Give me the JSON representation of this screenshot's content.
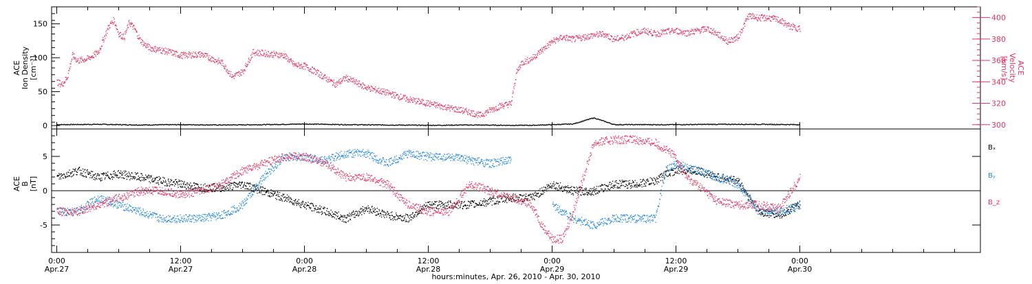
{
  "chart_data": [
    {
      "type": "line",
      "panel": "top",
      "xlabel": "hours:minutes, Apr. 26, 2010 - Apr. 30, 2010",
      "x_unit": "hours since Apr.27 00:00",
      "xlim": [
        -0.5,
        89.5
      ],
      "x_tick_labels": [
        {
          "x": 0,
          "time": "0:00",
          "date": "Apr.27"
        },
        {
          "x": 12,
          "time": "12:00",
          "date": "Apr.27"
        },
        {
          "x": 24,
          "time": "0:00",
          "date": "Apr.28"
        },
        {
          "x": 36,
          "time": "12:00",
          "date": "Apr.28"
        },
        {
          "x": 48,
          "time": "0:00",
          "date": "Apr.29"
        },
        {
          "x": 60,
          "time": "12:00",
          "date": "Apr.29"
        },
        {
          "x": 72,
          "time": "0:00",
          "date": "Apr.30"
        }
      ],
      "left_axis": {
        "label_lines": [
          "ACE",
          "Ion Density",
          "[cm⁻³]"
        ],
        "ylim": [
          -5,
          175
        ],
        "ticks": [
          0,
          50,
          100,
          150
        ],
        "color": "#000000"
      },
      "right_axis": {
        "label_lines": [
          "ACE",
          "Velocity",
          "[km/s]"
        ],
        "ylim": [
          296,
          410
        ],
        "ticks": [
          300,
          320,
          340,
          360,
          380,
          400
        ],
        "color": "#e8325f"
      },
      "series": [
        {
          "name": "Ion Density",
          "axis": "left",
          "color": "#000000",
          "x": [
            0,
            4,
            8,
            12,
            16,
            20,
            24,
            28,
            32,
            36,
            40,
            44,
            46,
            48,
            50,
            52,
            54,
            56,
            58,
            60,
            64,
            68,
            72
          ],
          "y": [
            2,
            2.5,
            1.5,
            2,
            1.5,
            2,
            3,
            2,
            1.5,
            1,
            1.5,
            1,
            1,
            2,
            3,
            12,
            2,
            2,
            2,
            2,
            2.5,
            2.5,
            2
          ]
        },
        {
          "name": "Velocity",
          "axis": "right",
          "color": "#e8325f",
          "x": [
            0,
            0.5,
            1,
            1.5,
            2,
            3,
            4,
            5,
            5.5,
            6,
            6.5,
            7,
            7.5,
            8,
            8.5,
            9,
            10,
            11,
            12,
            14,
            16,
            17,
            18,
            19,
            20,
            21,
            22,
            23,
            24,
            25,
            26,
            27,
            28,
            30,
            32,
            34,
            36,
            38,
            40,
            41,
            42,
            43,
            44,
            44.5,
            45,
            46,
            47,
            48,
            49,
            50,
            51,
            52,
            53,
            54,
            55,
            56,
            57,
            58,
            59,
            60,
            61,
            62,
            63,
            64,
            65,
            66,
            67,
            68,
            69,
            70,
            71,
            72
          ],
          "y": [
            340,
            338,
            345,
            365,
            360,
            362,
            368,
            392,
            398,
            385,
            382,
            396,
            390,
            380,
            375,
            372,
            370,
            368,
            365,
            366,
            358,
            345,
            350,
            368,
            367,
            366,
            365,
            356,
            355,
            350,
            344,
            338,
            344,
            335,
            330,
            324,
            320,
            316,
            312,
            309,
            314,
            318,
            320,
            348,
            358,
            362,
            370,
            378,
            382,
            380,
            382,
            384,
            385,
            380,
            382,
            386,
            388,
            385,
            387,
            388,
            386,
            388,
            390,
            385,
            378,
            382,
            402,
            400,
            400,
            398,
            392,
            390
          ]
        }
      ]
    },
    {
      "type": "line",
      "panel": "bottom",
      "xlabel": "hours:minutes, Apr. 26, 2010 - Apr. 30, 2010",
      "x_unit": "hours since Apr.27 00:00",
      "xlim": [
        -0.5,
        89.5
      ],
      "y_axis": {
        "label_lines": [
          "ACE",
          "B",
          "[nT]"
        ],
        "ylim": [
          -9,
          9
        ],
        "ticks": [
          -5,
          0,
          5
        ],
        "zero_line": true
      },
      "legend": [
        {
          "name": "Bₓ",
          "color": "#000000"
        },
        {
          "name": "Bᵧ",
          "color": "#1e88e5"
        },
        {
          "name": "B_z",
          "color": "#e8325f"
        }
      ],
      "legend_placement": "right",
      "series": [
        {
          "name": "Bx",
          "color": "#000000",
          "x": [
            0,
            2,
            4,
            6,
            8,
            10,
            12,
            14,
            16,
            18,
            20,
            22,
            24,
            26,
            28,
            30,
            32,
            34,
            36,
            38,
            40,
            42,
            44,
            46,
            48,
            50,
            52,
            54,
            56,
            58,
            59,
            60,
            62,
            64,
            66,
            68,
            70,
            72
          ],
          "y": [
            2,
            3,
            2,
            2.5,
            2,
            1.5,
            1,
            0.5,
            0.5,
            1,
            0,
            -1,
            -2,
            -3,
            -4,
            -2.5,
            -3.5,
            -4,
            -2,
            -2,
            -2,
            -1.5,
            -1,
            -1,
            1,
            0,
            0,
            1,
            1,
            1.5,
            2.5,
            3,
            3,
            2,
            1.5,
            -3,
            -3.5,
            -2
          ]
        },
        {
          "name": "By",
          "color": "#1e88e5",
          "x": [
            0,
            2,
            4,
            6,
            8,
            10,
            12,
            14,
            16,
            18,
            20,
            22,
            24,
            26,
            28,
            30,
            32,
            34,
            36,
            38,
            40,
            42,
            44,
            46,
            48,
            50,
            52,
            54,
            56,
            58,
            59,
            60,
            62,
            64,
            66,
            68,
            70,
            72
          ],
          "y": [
            -3,
            -3,
            -1,
            -2,
            -3,
            -4,
            -4,
            -4,
            -3.5,
            -2,
            2,
            5,
            5,
            4.5,
            5.5,
            5.5,
            4,
            5.5,
            5,
            5,
            4.5,
            4,
            4.5,
            null,
            -2,
            -4,
            -5,
            -4,
            -4,
            -4,
            3,
            4,
            3,
            2,
            1,
            -3,
            -3,
            -2
          ]
        },
        {
          "name": "Bz",
          "color": "#e8325f",
          "x": [
            0,
            2,
            4,
            6,
            8,
            10,
            12,
            14,
            16,
            18,
            20,
            22,
            24,
            26,
            28,
            30,
            32,
            34,
            36,
            38,
            40,
            42,
            44,
            46,
            47,
            48,
            49,
            50,
            52,
            54,
            56,
            58,
            60,
            61,
            62,
            64,
            66,
            68,
            70,
            72
          ],
          "y": [
            -3,
            -3,
            -2,
            -1,
            0,
            0,
            -0.5,
            0,
            1,
            3,
            4,
            5,
            5,
            4,
            2,
            2,
            1,
            -2,
            -3,
            -3,
            1,
            0,
            -1,
            -2,
            -5,
            -7,
            -7,
            -3,
            7,
            7.5,
            7.5,
            7,
            5,
            2,
            1,
            -1.5,
            -2,
            -2,
            -2.5,
            2
          ]
        }
      ]
    }
  ]
}
